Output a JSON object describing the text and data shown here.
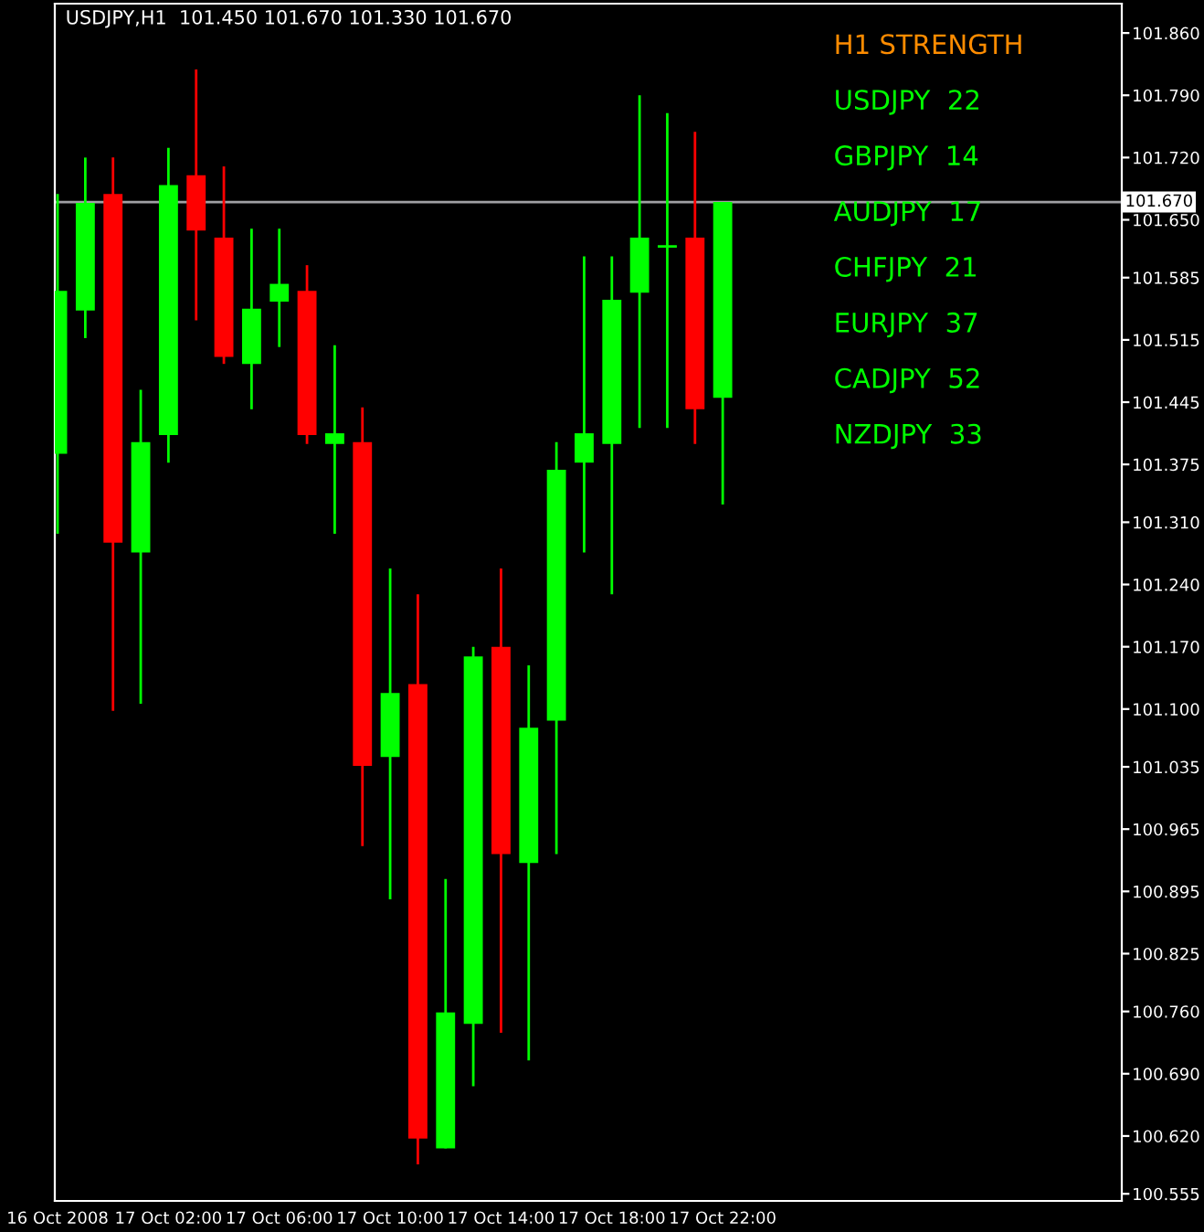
{
  "chart_data": {
    "type": "candlestick",
    "title": "USDJPY,H1  101.450 101.670 101.330 101.670",
    "x": [
      "2008-10-16T22:00",
      "2008-10-16T23:00",
      "2008-10-17T00:00",
      "2008-10-17T01:00",
      "2008-10-17T02:00",
      "2008-10-17T03:00",
      "2008-10-17T04:00",
      "2008-10-17T05:00",
      "2008-10-17T06:00",
      "2008-10-17T07:00",
      "2008-10-17T08:00",
      "2008-10-17T09:00",
      "2008-10-17T10:00",
      "2008-10-17T11:00",
      "2008-10-17T12:00",
      "2008-10-17T13:00",
      "2008-10-17T14:00",
      "2008-10-17T15:00",
      "2008-10-17T16:00",
      "2008-10-17T17:00",
      "2008-10-17T18:00",
      "2008-10-17T19:00",
      "2008-10-17T20:00",
      "2008-10-17T21:00",
      "2008-10-17T22:00"
    ],
    "ohlc": [
      [
        101.387,
        101.679,
        101.297,
        101.57
      ],
      [
        101.548,
        101.72,
        101.517,
        101.669
      ],
      [
        101.679,
        101.72,
        101.098,
        101.287
      ],
      [
        101.276,
        101.459,
        101.106,
        101.4
      ],
      [
        101.408,
        101.731,
        101.377,
        101.689
      ],
      [
        101.7,
        101.819,
        101.537,
        101.638
      ],
      [
        101.63,
        101.71,
        101.488,
        101.496
      ],
      [
        101.488,
        101.64,
        101.437,
        101.55
      ],
      [
        101.558,
        101.64,
        101.507,
        101.578
      ],
      [
        101.57,
        101.599,
        101.398,
        101.408
      ],
      [
        101.398,
        101.509,
        101.297,
        101.41
      ],
      [
        101.4,
        101.439,
        100.946,
        101.036
      ],
      [
        101.046,
        101.258,
        100.886,
        101.118
      ],
      [
        101.128,
        101.229,
        100.588,
        100.617
      ],
      [
        100.606,
        100.909,
        100.606,
        100.759
      ],
      [
        100.746,
        101.17,
        100.676,
        101.159
      ],
      [
        101.17,
        101.258,
        100.736,
        100.937
      ],
      [
        100.927,
        101.149,
        100.705,
        101.079
      ],
      [
        101.087,
        101.4,
        100.937,
        101.369
      ],
      [
        101.377,
        101.609,
        101.276,
        101.41
      ],
      [
        101.398,
        101.609,
        101.229,
        101.56
      ],
      [
        101.568,
        101.79,
        101.416,
        101.63
      ],
      [
        101.62,
        101.77,
        101.416,
        101.62
      ],
      [
        101.63,
        101.749,
        101.398,
        101.437
      ],
      [
        101.45,
        101.67,
        101.33,
        101.67
      ]
    ],
    "colors": [
      "#00ff00",
      "#00ff00",
      "#ff0000",
      "#00ff00",
      "#00ff00",
      "#ff0000",
      "#ff0000",
      "#00ff00",
      "#00ff00",
      "#ff0000",
      "#00ff00",
      "#ff0000",
      "#00ff00",
      "#ff0000",
      "#00ff00",
      "#00ff00",
      "#ff0000",
      "#00ff00",
      "#00ff00",
      "#00ff00",
      "#00ff00",
      "#00ff00",
      "#00ff00",
      "#ff0000",
      "#00ff00"
    ],
    "xlim": [
      "2008-10-16T21:54",
      "2008-10-18T12:24"
    ],
    "xticks": [
      {
        "value": "2008-10-16T22:00",
        "label": "16 Oct 2008"
      },
      {
        "value": "2008-10-17T02:00",
        "label": "17 Oct 02:00"
      },
      {
        "value": "2008-10-17T06:00",
        "label": "17 Oct 06:00"
      },
      {
        "value": "2008-10-17T10:00",
        "label": "17 Oct 10:00"
      },
      {
        "value": "2008-10-17T14:00",
        "label": "17 Oct 14:00"
      },
      {
        "value": "2008-10-17T18:00",
        "label": "17 Oct 18:00"
      },
      {
        "value": "2008-10-17T22:00",
        "label": "17 Oct 22:00"
      }
    ],
    "ylim": [
      100.547,
      101.893
    ],
    "yticks": [
      {
        "value": 101.86,
        "label": "101.860"
      },
      {
        "value": 101.79,
        "label": "101.790"
      },
      {
        "value": 101.72,
        "label": "101.720"
      },
      {
        "value": 101.65,
        "label": "101.650"
      },
      {
        "value": 101.585,
        "label": "101.585"
      },
      {
        "value": 101.515,
        "label": "101.515"
      },
      {
        "value": 101.445,
        "label": "101.445"
      },
      {
        "value": 101.375,
        "label": "101.375"
      },
      {
        "value": 101.31,
        "label": "101.310"
      },
      {
        "value": 101.24,
        "label": "101.240"
      },
      {
        "value": 101.17,
        "label": "101.170"
      },
      {
        "value": 101.1,
        "label": "101.100"
      },
      {
        "value": 101.035,
        "label": "101.035"
      },
      {
        "value": 100.965,
        "label": "100.965"
      },
      {
        "value": 100.895,
        "label": "100.895"
      },
      {
        "value": 100.825,
        "label": "100.825"
      },
      {
        "value": 100.76,
        "label": "100.760"
      },
      {
        "value": 100.69,
        "label": "100.690"
      },
      {
        "value": 100.62,
        "label": "100.620"
      },
      {
        "value": 100.555,
        "label": "100.555"
      }
    ],
    "ref_lines": [
      {
        "axis": "y",
        "value": 101.67,
        "label": "101.670",
        "color": "#a0a0a4"
      }
    ],
    "annotations": [
      "H1 STRENGTH",
      "USDJPY  22",
      "GBPJPY  14",
      "AUDJPY  17",
      "CHFJPY  21",
      "EURJPY  37",
      "CADJPY  52",
      "NZDJPY  33"
    ],
    "grid": false,
    "legend": false
  }
}
